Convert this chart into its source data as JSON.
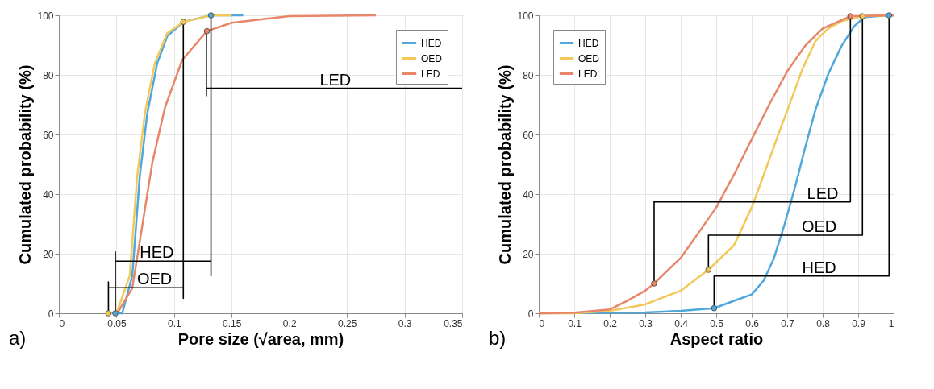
{
  "chart_data": [
    {
      "type": "line",
      "xlabel": "Pore size (√area, mm)",
      "ylabel": "Cumulated probability (%)",
      "xlim": [
        0,
        0.35
      ],
      "ylim": [
        0,
        100
      ],
      "xticks": [
        0,
        0.05,
        0.1,
        0.15,
        0.2,
        0.25,
        0.3,
        0.35
      ],
      "yticks": [
        0,
        20,
        40,
        60,
        80,
        100
      ],
      "grid": true,
      "legend": "top right",
      "series": [
        {
          "name": "HED",
          "color": "#4fa8dc",
          "x": [
            0.049,
            0.055,
            0.0637,
            0.0702,
            0.0767,
            0.0854,
            0.0941,
            0.1083,
            0.1315,
            0.16
          ],
          "values": [
            0,
            0,
            12.6,
            46,
            67,
            84,
            93,
            97.8,
            100,
            100
          ]
        },
        {
          "name": "OED",
          "color": "#f3c85a",
          "x": [
            0.043,
            0.05,
            0.0615,
            0.068,
            0.0746,
            0.0833,
            0.094,
            0.1083,
            0.1315,
            0.15
          ],
          "values": [
            0,
            0,
            12.6,
            46,
            67,
            84,
            94,
            97.8,
            100,
            100
          ]
        },
        {
          "name": "LED",
          "color": "#e8866a",
          "x": [
            0.0507,
            0.0637,
            0.0724,
            0.0811,
            0.092,
            0.107,
            0.1285,
            0.15,
            0.2,
            0.275
          ],
          "values": [
            0,
            8.4,
            29.5,
            50.5,
            69,
            85,
            94.7,
            97.5,
            99.7,
            100
          ]
        },
        {
          "type": "line",
          "color": "#000000",
          "x": [
            0.049,
            0.049,
            0.049,
            0.132,
            0.132,
            0.132
          ],
          "values": [
            0,
            20.6,
            17.5,
            17.5,
            12.6,
            100
          ]
        },
        {
          "type": "line",
          "color": "#000000",
          "x": [
            0.043,
            0.043,
            0.043,
            0.108,
            0.108,
            0.108
          ],
          "values": [
            0,
            10.5,
            8.6,
            8.6,
            5,
            97.8
          ]
        },
        {
          "type": "line",
          "color": "#000000",
          "x": [
            0.128,
            0.128,
            0.128,
            0.35
          ],
          "values": [
            94.7,
            73,
            75.5,
            75.5
          ]
        },
        {
          "type": "scatter",
          "marker": "circle",
          "x": [
            0.043,
            0.049,
            0.108,
            0.132,
            0.1285
          ],
          "values": [
            0,
            0,
            97.8,
            100,
            94.7
          ],
          "colors": [
            "#f3c85a",
            "#4fa8dc",
            "#f3c85a",
            "#4fa8dc",
            "#e8866a"
          ]
        }
      ],
      "annotations": [
        {
          "text": "HED",
          "x": 0.085,
          "y": 17.5
        },
        {
          "text": "OED",
          "x": 0.083,
          "y": 8.6
        },
        {
          "text": "LED",
          "x": 0.24,
          "y": 75.5
        },
        "a)"
      ]
    },
    {
      "type": "line",
      "xlabel": "Aspect ratio",
      "ylabel": "Cumulated probability (%)",
      "xlim": [
        0,
        1
      ],
      "ylim": [
        0,
        100
      ],
      "xticks": [
        0,
        0.1,
        0.2,
        0.3,
        0.4,
        0.5,
        0.6,
        0.7,
        0.8,
        0.9,
        1
      ],
      "yticks": [
        0,
        20,
        40,
        60,
        80,
        100
      ],
      "grid": true,
      "legend": "top left",
      "series": [
        {
          "name": "HED",
          "color": "#4fa8dc",
          "x": [
            0,
            0.3,
            0.4,
            0.494,
            0.55,
            0.6,
            0.634,
            0.663,
            0.692,
            0.722,
            0.751,
            0.78,
            0.816,
            0.853,
            0.889,
            0.918,
            0.987,
            1
          ],
          "values": [
            0,
            0.3,
            0.8,
            1.7,
            4.2,
            6.3,
            11,
            18.6,
            29.6,
            42.3,
            55.8,
            68.5,
            80.4,
            89.7,
            96.4,
            99.4,
            100,
            100
          ]
        },
        {
          "name": "OED",
          "color": "#f3c85a",
          "x": [
            0,
            0.1,
            0.2,
            0.3,
            0.4,
            0.478,
            0.55,
            0.6,
            0.634,
            0.67,
            0.707,
            0.743,
            0.78,
            0.816,
            0.853,
            0.912,
            1
          ],
          "values": [
            0,
            0,
            0.8,
            3,
            7.6,
            14.6,
            22.8,
            35.5,
            46.5,
            58.4,
            70.2,
            82,
            91.4,
            95.6,
            98,
            99.7,
            100
          ]
        },
        {
          "name": "LED",
          "color": "#e8866a",
          "x": [
            0,
            0.1,
            0.2,
            0.25,
            0.3,
            0.325,
            0.4,
            0.45,
            0.5,
            0.55,
            0.6,
            0.65,
            0.7,
            0.75,
            0.8,
            0.878,
            1
          ],
          "values": [
            0,
            0.2,
            1.3,
            4.2,
            7.6,
            10,
            18.6,
            27,
            35.5,
            46.5,
            58.4,
            70.2,
            81.2,
            89.7,
            95.6,
            99.7,
            100
          ]
        },
        {
          "type": "line",
          "color": "#000000",
          "x": [
            0.325,
            0.325,
            0.878,
            0.878
          ],
          "values": [
            10,
            37.4,
            37.4,
            99.7
          ]
        },
        {
          "type": "line",
          "color": "#000000",
          "x": [
            0.478,
            0.478,
            0.912,
            0.912
          ],
          "values": [
            14.6,
            26.2,
            26.2,
            99.7
          ]
        },
        {
          "type": "line",
          "color": "#000000",
          "x": [
            0.494,
            0.494,
            0.987,
            0.987
          ],
          "values": [
            1.7,
            12.5,
            12.5,
            100
          ]
        },
        {
          "type": "scatter",
          "marker": "circle",
          "x": [
            0.325,
            0.478,
            0.494,
            0.878,
            0.912,
            0.987
          ],
          "values": [
            10,
            14.6,
            1.7,
            99.7,
            99.7,
            100
          ],
          "colors": [
            "#e8866a",
            "#f3c85a",
            "#4fa8dc",
            "#e8866a",
            "#f3c85a",
            "#4fa8dc"
          ]
        }
      ],
      "annotations": [
        {
          "text": "LED",
          "x": 0.8,
          "y": 37.4
        },
        {
          "text": "OED",
          "x": 0.79,
          "y": 26.2
        },
        {
          "text": "HED",
          "x": 0.79,
          "y": 12.5
        },
        "b)"
      ]
    }
  ]
}
